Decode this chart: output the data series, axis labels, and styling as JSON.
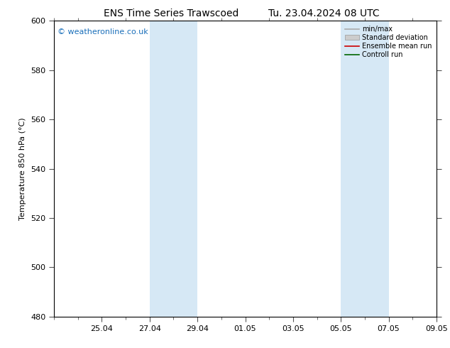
{
  "title_left": "ENS Time Series Trawscoed",
  "title_right": "Tu. 23.04.2024 08 UTC",
  "ylabel": "Temperature 850 hPa (°C)",
  "watermark": "© weatheronline.co.uk",
  "ylim": [
    480,
    600
  ],
  "yticks": [
    480,
    500,
    520,
    540,
    560,
    580,
    600
  ],
  "xtick_labels": [
    "25.04",
    "27.04",
    "29.04",
    "01.05",
    "03.05",
    "05.05",
    "07.05",
    "09.05"
  ],
  "xtick_positions": [
    2,
    4,
    6,
    8,
    10,
    12,
    14,
    16
  ],
  "shade_bands": [
    {
      "x_start": 4,
      "x_end": 6,
      "color": "#d6e8f5"
    },
    {
      "x_start": 12,
      "x_end": 14,
      "color": "#d6e8f5"
    }
  ],
  "legend_entries": [
    {
      "label": "min/max",
      "color": "#aaaaaa",
      "lw": 1.2,
      "type": "line"
    },
    {
      "label": "Standard deviation",
      "color": "#cccccc",
      "lw": 6,
      "type": "patch"
    },
    {
      "label": "Ensemble mean run",
      "color": "#cc0000",
      "lw": 1.2,
      "type": "line"
    },
    {
      "label": "Controll run",
      "color": "#006600",
      "lw": 1.2,
      "type": "line"
    }
  ],
  "background_color": "#ffffff",
  "plot_bg_color": "#ffffff",
  "grid_color": "#bbbbbb",
  "title_fontsize": 10,
  "label_fontsize": 8,
  "tick_fontsize": 8,
  "watermark_color": "#1a6fba",
  "watermark_fontsize": 8,
  "total_x_days": 16
}
